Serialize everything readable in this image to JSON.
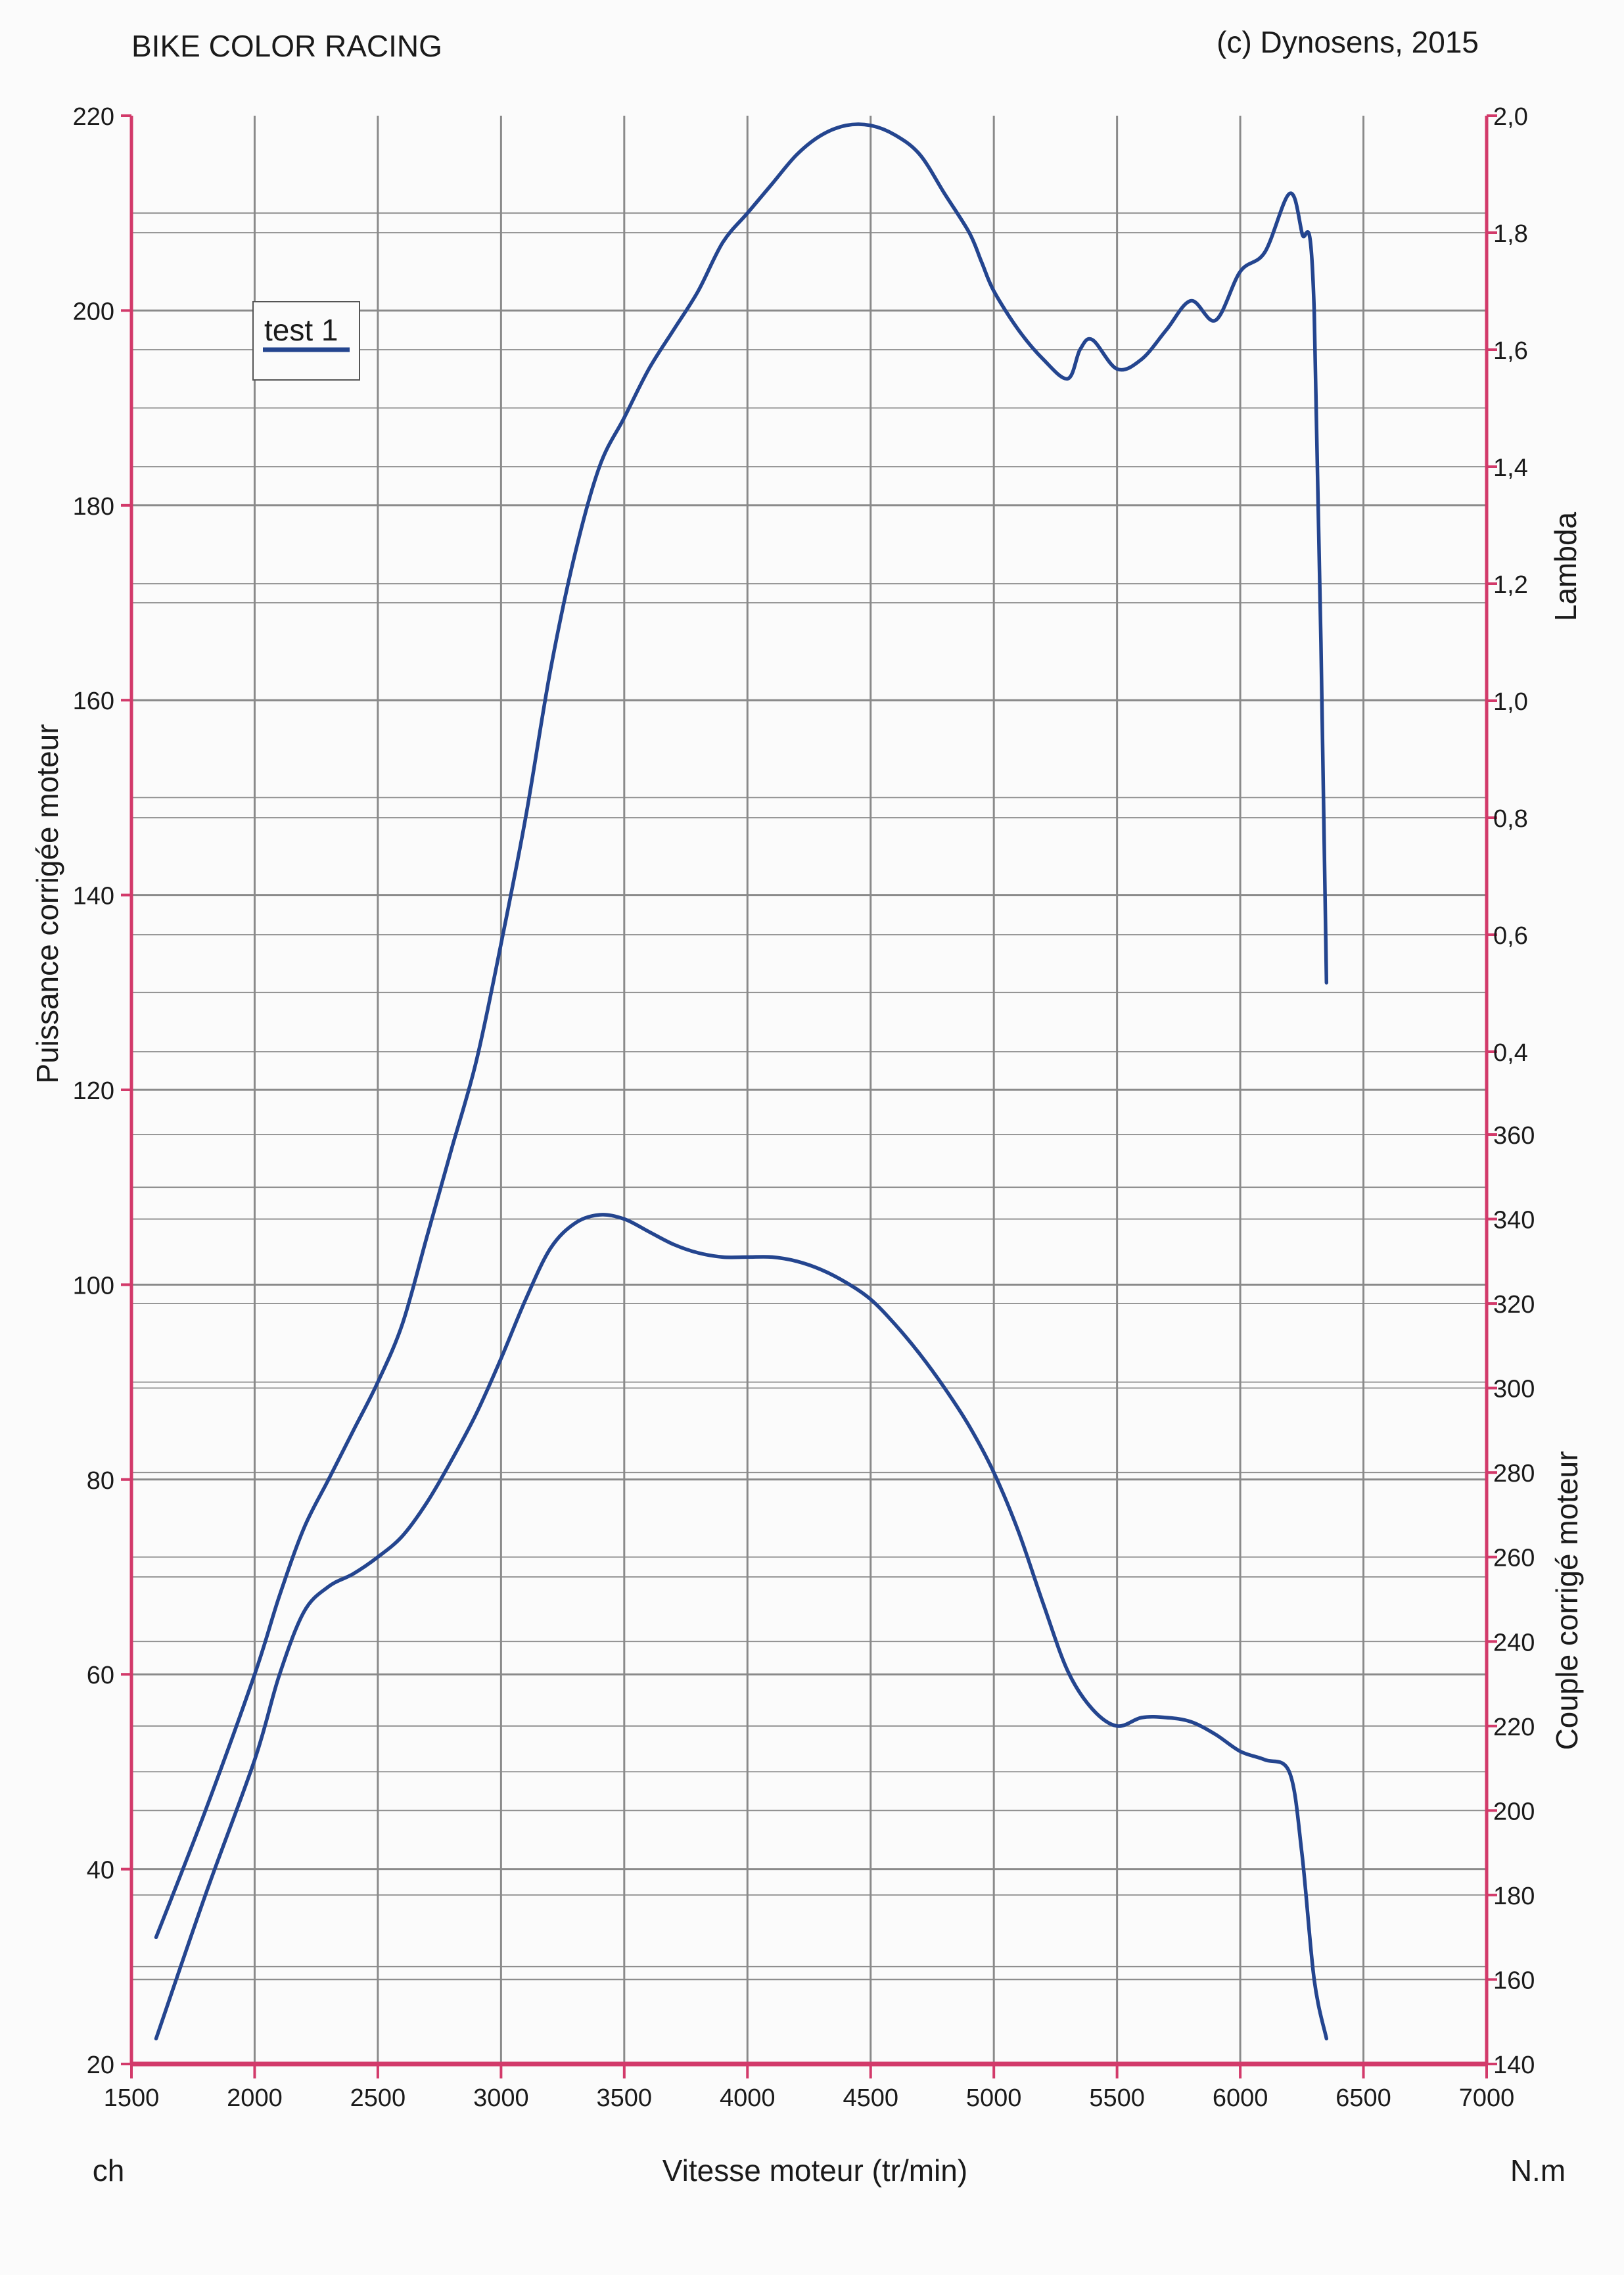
{
  "header": {
    "left": "BIKE COLOR RACING",
    "right": "(c) Dynosens, 2015"
  },
  "colors": {
    "curve": "#24458f",
    "axis": "#d23a6a",
    "grid": "#8a8a8a"
  },
  "chart_data": {
    "type": "line",
    "xlabel": "Vitesse moteur (tr/min)",
    "ylabel_left": "Puissance corrigée moteur",
    "ylabel_right_top": "Lambda",
    "ylabel_right_bottom": "Couple corrigé moteur",
    "unit_left": "ch",
    "unit_right": "N.m",
    "xlim": [
      1500,
      7000
    ],
    "xticks": [
      "1500",
      "2000",
      "2500",
      "3000",
      "3500",
      "4000",
      "4500",
      "5000",
      "5500",
      "6000",
      "6500",
      "7000"
    ],
    "ylim_left": [
      20,
      220
    ],
    "yticks_left": [
      "20",
      "40",
      "60",
      "80",
      "100",
      "120",
      "140",
      "160",
      "180",
      "200",
      "220"
    ],
    "lambda_range": [
      0.4,
      2.0
    ],
    "lambda_ticks": [
      "0,4",
      "0,6",
      "0,8",
      "1,0",
      "1,2",
      "1,4",
      "1,6",
      "1,8",
      "2,0"
    ],
    "torque_range": [
      140,
      360
    ],
    "torque_ticks": [
      "140",
      "160",
      "180",
      "200",
      "220",
      "240",
      "260",
      "280",
      "300",
      "320",
      "340",
      "360"
    ],
    "grid": true,
    "legend": {
      "position": "top-left",
      "entries": [
        "test 1"
      ]
    },
    "series": [
      {
        "name": "test 1",
        "axis": "left",
        "x": [
          1600,
          1800,
          2000,
          2100,
          2200,
          2300,
          2400,
          2500,
          2600,
          2700,
          2800,
          2900,
          3000,
          3100,
          3200,
          3300,
          3400,
          3500,
          3600,
          3700,
          3800,
          3900,
          4000,
          4100,
          4200,
          4300,
          4400,
          4500,
          4600,
          4700,
          4800,
          4900,
          4950,
          5000,
          5100,
          5200,
          5300,
          5350,
          5400,
          5500,
          5600,
          5700,
          5800,
          5900,
          6000,
          6100,
          6200,
          6250,
          6300,
          6350
        ],
        "y": [
          33,
          46,
          60,
          68,
          75,
          80,
          85,
          90,
          96,
          105,
          114,
          123,
          135,
          148,
          163,
          175,
          184,
          189,
          194,
          198,
          202,
          207,
          210,
          213,
          216,
          218,
          219,
          219,
          218,
          216,
          212,
          208,
          205,
          202,
          198,
          195,
          193,
          196,
          197,
          194,
          195,
          198,
          201,
          199,
          204,
          206,
          212,
          208,
          200,
          131
        ]
      },
      {
        "name": "test 1",
        "axis": "torque",
        "x": [
          1600,
          1800,
          2000,
          2100,
          2200,
          2300,
          2400,
          2500,
          2600,
          2700,
          2800,
          2900,
          3000,
          3100,
          3200,
          3300,
          3400,
          3500,
          3600,
          3700,
          3800,
          3900,
          4000,
          4100,
          4200,
          4300,
          4400,
          4500,
          4600,
          4700,
          4800,
          4900,
          5000,
          5100,
          5200,
          5300,
          5400,
          5500,
          5600,
          5700,
          5800,
          5900,
          6000,
          6100,
          6200,
          6250,
          6300,
          6350
        ],
        "y": [
          146,
          180,
          212,
          232,
          247,
          253,
          256,
          260,
          265,
          273,
          283,
          294,
          307,
          321,
          333,
          339,
          341,
          340,
          337,
          334,
          332,
          331,
          331,
          331,
          330,
          328,
          325,
          321,
          315,
          308,
          300,
          291,
          280,
          266,
          249,
          233,
          224,
          220,
          222,
          222,
          221,
          218,
          214,
          212,
          209,
          190,
          160,
          146
        ]
      }
    ]
  }
}
